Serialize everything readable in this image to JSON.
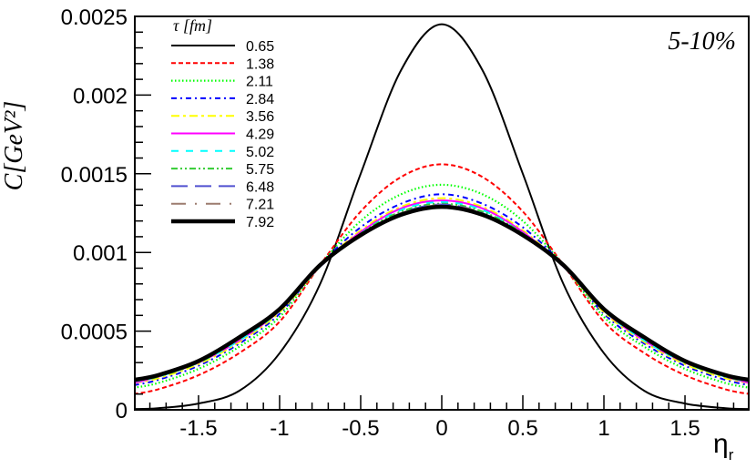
{
  "chart_data": {
    "type": "line",
    "title": "",
    "annotation": "5-10%",
    "xlabel": "η",
    "xlabel_subscript": "r",
    "ylabel": "C[GeV²]",
    "xlim": [
      -1.893,
      1.893
    ],
    "ylim": [
      0,
      0.0025
    ],
    "x_ticks": [
      "-1.5",
      "-1",
      "-0.5",
      "0",
      "0.5",
      "1",
      "1.5"
    ],
    "y_ticks": [
      "0",
      "0.0005",
      "0.001",
      "0.0015",
      "0.002",
      "0.0025"
    ],
    "grid": false,
    "legend": {
      "title": "τ [fm]",
      "placement": "top-left"
    },
    "x": [
      -1.9,
      -1.75,
      -1.5,
      -1.25,
      -1,
      -0.75,
      -0.5,
      -0.25,
      0,
      0.25,
      0.5,
      0.75,
      1,
      1.25,
      1.5,
      1.75,
      1.9
    ],
    "series": [
      {
        "name": "0.65",
        "color": "#000000",
        "style": "solid",
        "values": [
          5e-06,
          1e-05,
          4e-05,
          0.00012,
          0.00036,
          0.0008,
          0.0015,
          0.00216,
          0.00245,
          0.00216,
          0.0015,
          0.0008,
          0.00036,
          0.00012,
          4e-05,
          1e-05,
          5e-06
        ]
      },
      {
        "name": "1.38",
        "color": "#ff0000",
        "style": "dashed",
        "values": [
          0.0001,
          0.00013,
          0.00022,
          0.00036,
          0.00056,
          0.00092,
          0.00126,
          0.00148,
          0.00156,
          0.00148,
          0.00126,
          0.00092,
          0.00056,
          0.00036,
          0.00022,
          0.00013,
          0.0001
        ]
      },
      {
        "name": "2.11",
        "color": "#00ff00",
        "style": "dotted",
        "values": [
          0.00014,
          0.00017,
          0.00026,
          0.0004,
          0.00059,
          0.00092,
          0.0012,
          0.00137,
          0.00143,
          0.00137,
          0.0012,
          0.00092,
          0.00059,
          0.0004,
          0.00026,
          0.00017,
          0.00014
        ]
      },
      {
        "name": "2.84",
        "color": "#0000ff",
        "style": "dash-dot",
        "values": [
          0.000156,
          0.00019,
          0.00028,
          0.00042,
          0.00061,
          0.00092,
          0.00116,
          0.00131,
          0.00137,
          0.00131,
          0.00116,
          0.00092,
          0.00061,
          0.00042,
          0.00028,
          0.00019,
          0.000156
        ]
      },
      {
        "name": "3.56",
        "color": "#ffff00",
        "style": "long-dash-dot",
        "values": [
          0.00017,
          0.0002,
          0.00029,
          0.00043,
          0.00062,
          0.00091,
          0.00114,
          0.00129,
          0.001345,
          0.00129,
          0.00114,
          0.00091,
          0.00062,
          0.00043,
          0.00029,
          0.0002,
          0.00017
        ]
      },
      {
        "name": "4.29",
        "color": "#ff00ff",
        "style": "solid",
        "values": [
          0.00017,
          0.00021,
          0.0003,
          0.00044,
          0.00063,
          0.00091,
          0.00113,
          0.00128,
          0.00133,
          0.00128,
          0.00113,
          0.00091,
          0.00063,
          0.00044,
          0.0003,
          0.00021,
          0.00017
        ]
      },
      {
        "name": "5.02",
        "color": "#00ffff",
        "style": "dashed-long",
        "values": [
          0.00018,
          0.00021,
          0.0003,
          0.00044,
          0.00063,
          0.00091,
          0.00112,
          0.00127,
          0.00132,
          0.00127,
          0.00112,
          0.00091,
          0.00063,
          0.00044,
          0.0003,
          0.00021,
          0.00018
        ]
      },
      {
        "name": "5.75",
        "color": "#33cc33",
        "style": "dash-dot-dot",
        "values": [
          0.00018,
          0.00021,
          0.0003,
          0.00045,
          0.00063,
          0.00091,
          0.00112,
          0.00126,
          0.00131,
          0.00126,
          0.00112,
          0.00091,
          0.00063,
          0.00045,
          0.0003,
          0.00021,
          0.00018
        ]
      },
      {
        "name": "6.48",
        "color": "#5050d0",
        "style": "long-dash",
        "values": [
          0.00018,
          0.00022,
          0.00031,
          0.00045,
          0.00064,
          0.00091,
          0.00111,
          0.00125,
          0.001305,
          0.00125,
          0.00111,
          0.00091,
          0.00064,
          0.00045,
          0.00031,
          0.00022,
          0.00018
        ]
      },
      {
        "name": "7.21",
        "color": "#9c7b6e",
        "style": "long-dash-dot-sparse",
        "values": [
          0.00019,
          0.00022,
          0.00031,
          0.00045,
          0.00064,
          0.00091,
          0.00111,
          0.00125,
          0.0013,
          0.00125,
          0.00111,
          0.00091,
          0.00064,
          0.00045,
          0.00031,
          0.00022,
          0.00019
        ]
      },
      {
        "name": "7.92",
        "color": "#000000",
        "style": "thick-solid",
        "values": [
          0.00019,
          0.00022,
          0.00031,
          0.00046,
          0.00064,
          0.00092,
          0.00111,
          0.00124,
          0.00129,
          0.00124,
          0.00111,
          0.00092,
          0.00064,
          0.00046,
          0.00031,
          0.00022,
          0.00019
        ]
      }
    ]
  }
}
